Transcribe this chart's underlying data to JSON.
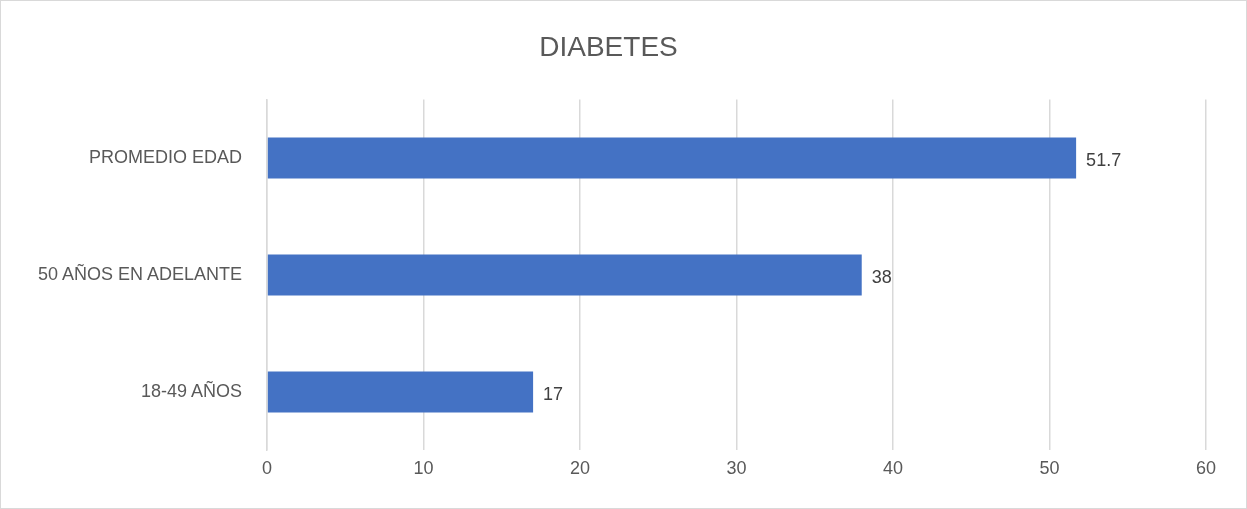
{
  "chart_data": {
    "type": "bar",
    "orientation": "horizontal",
    "title": "DIABETES",
    "categories": [
      "PROMEDIO EDAD",
      "50 AÑOS EN ADELANTE",
      "18-49 AÑOS"
    ],
    "values": [
      51.7,
      38,
      17
    ],
    "color": "#4472c4",
    "xlim": [
      0,
      60
    ],
    "xticks": [
      0,
      10,
      20,
      30,
      40,
      50,
      60
    ],
    "grid": "x",
    "data_labels": true,
    "legend": false
  }
}
